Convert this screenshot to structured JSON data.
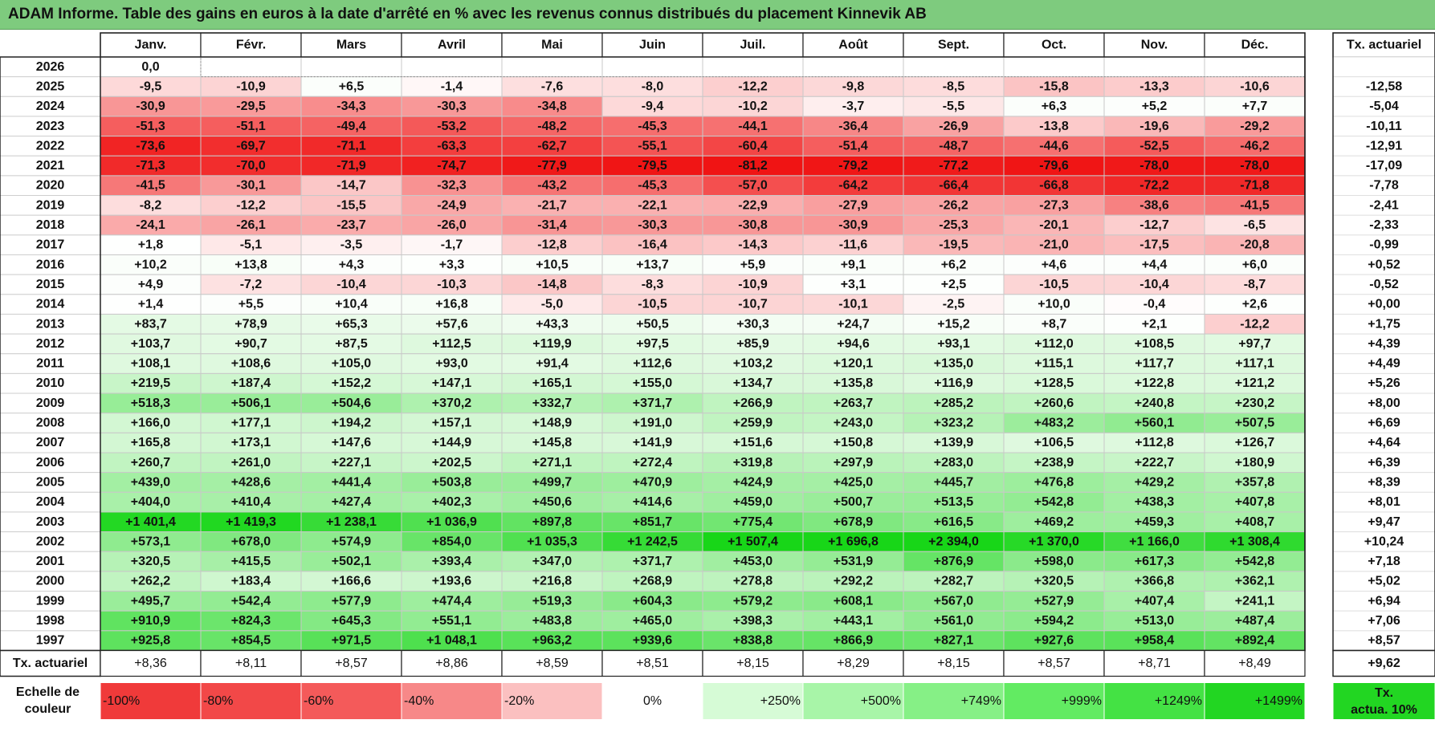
{
  "title": "ADAM Informe. Table des gains en euros à la date d'arrêté en % avec les revenus connus distribués du placement Kinnevik AB",
  "chart_data": {
    "type": "heatmap",
    "months": [
      "Janv.",
      "Févr.",
      "Mars",
      "Avril",
      "Mai",
      "Juin",
      "Juil.",
      "Août",
      "Sept.",
      "Oct.",
      "Nov.",
      "Déc."
    ],
    "rate_header": "Tx. actuariel",
    "rows": [
      {
        "year": "2026",
        "values": [
          "0,0",
          "",
          "",
          "",
          "",
          "",
          "",
          "",
          "",
          "",
          "",
          ""
        ],
        "rate": ""
      },
      {
        "year": "2025",
        "values": [
          "-9,5",
          "-10,9",
          "+6,5",
          "-1,4",
          "-7,6",
          "-8,0",
          "-12,2",
          "-9,8",
          "-8,5",
          "-15,8",
          "-13,3",
          "-10,6"
        ],
        "rate": "-12,58"
      },
      {
        "year": "2024",
        "values": [
          "-30,9",
          "-29,5",
          "-34,3",
          "-30,3",
          "-34,8",
          "-9,4",
          "-10,2",
          "-3,7",
          "-5,5",
          "+6,3",
          "+5,2",
          "+7,7"
        ],
        "rate": "-5,04"
      },
      {
        "year": "2023",
        "values": [
          "-51,3",
          "-51,1",
          "-49,4",
          "-53,2",
          "-48,2",
          "-45,3",
          "-44,1",
          "-36,4",
          "-26,9",
          "-13,8",
          "-19,6",
          "-29,2"
        ],
        "rate": "-10,11"
      },
      {
        "year": "2022",
        "values": [
          "-73,6",
          "-69,7",
          "-71,1",
          "-63,3",
          "-62,7",
          "-55,1",
          "-60,4",
          "-51,4",
          "-48,7",
          "-44,6",
          "-52,5",
          "-46,2"
        ],
        "rate": "-12,91"
      },
      {
        "year": "2021",
        "values": [
          "-71,3",
          "-70,0",
          "-71,9",
          "-74,7",
          "-77,9",
          "-79,5",
          "-81,2",
          "-79,2",
          "-77,2",
          "-79,6",
          "-78,0",
          "-78,0"
        ],
        "rate": "-17,09"
      },
      {
        "year": "2020",
        "values": [
          "-41,5",
          "-30,1",
          "-14,7",
          "-32,3",
          "-43,2",
          "-45,3",
          "-57,0",
          "-64,2",
          "-66,4",
          "-66,8",
          "-72,2",
          "-71,8"
        ],
        "rate": "-7,78"
      },
      {
        "year": "2019",
        "values": [
          "-8,2",
          "-12,2",
          "-15,5",
          "-24,9",
          "-21,7",
          "-22,1",
          "-22,9",
          "-27,9",
          "-26,2",
          "-27,3",
          "-38,6",
          "-41,5"
        ],
        "rate": "-2,41"
      },
      {
        "year": "2018",
        "values": [
          "-24,1",
          "-26,1",
          "-23,7",
          "-26,0",
          "-31,4",
          "-30,3",
          "-30,8",
          "-30,9",
          "-25,3",
          "-20,1",
          "-12,7",
          "-6,5"
        ],
        "rate": "-2,33"
      },
      {
        "year": "2017",
        "values": [
          "+1,8",
          "-5,1",
          "-3,5",
          "-1,7",
          "-12,8",
          "-16,4",
          "-14,3",
          "-11,6",
          "-19,5",
          "-21,0",
          "-17,5",
          "-20,8"
        ],
        "rate": "-0,99"
      },
      {
        "year": "2016",
        "values": [
          "+10,2",
          "+13,8",
          "+4,3",
          "+3,3",
          "+10,5",
          "+13,7",
          "+5,9",
          "+9,1",
          "+6,2",
          "+4,6",
          "+4,4",
          "+6,0"
        ],
        "rate": "+0,52"
      },
      {
        "year": "2015",
        "values": [
          "+4,9",
          "-7,2",
          "-10,4",
          "-10,3",
          "-14,8",
          "-8,3",
          "-10,9",
          "+3,1",
          "+2,5",
          "-10,5",
          "-10,4",
          "-8,7"
        ],
        "rate": "-0,52"
      },
      {
        "year": "2014",
        "values": [
          "+1,4",
          "+5,5",
          "+10,4",
          "+16,8",
          "-5,0",
          "-10,5",
          "-10,7",
          "-10,1",
          "-2,5",
          "+10,0",
          "-0,4",
          "+2,6"
        ],
        "rate": "+0,00"
      },
      {
        "year": "2013",
        "values": [
          "+83,7",
          "+78,9",
          "+65,3",
          "+57,6",
          "+43,3",
          "+50,5",
          "+30,3",
          "+24,7",
          "+15,2",
          "+8,7",
          "+2,1",
          "-12,2"
        ],
        "rate": "+1,75"
      },
      {
        "year": "2012",
        "values": [
          "+103,7",
          "+90,7",
          "+87,5",
          "+112,5",
          "+119,9",
          "+97,5",
          "+85,9",
          "+94,6",
          "+93,1",
          "+112,0",
          "+108,5",
          "+97,7"
        ],
        "rate": "+4,39"
      },
      {
        "year": "2011",
        "values": [
          "+108,1",
          "+108,6",
          "+105,0",
          "+93,0",
          "+91,4",
          "+112,6",
          "+103,2",
          "+120,1",
          "+135,0",
          "+115,1",
          "+117,7",
          "+117,1"
        ],
        "rate": "+4,49"
      },
      {
        "year": "2010",
        "values": [
          "+219,5",
          "+187,4",
          "+152,2",
          "+147,1",
          "+165,1",
          "+155,0",
          "+134,7",
          "+135,8",
          "+116,9",
          "+128,5",
          "+122,8",
          "+121,2"
        ],
        "rate": "+5,26"
      },
      {
        "year": "2009",
        "values": [
          "+518,3",
          "+506,1",
          "+504,6",
          "+370,2",
          "+332,7",
          "+371,7",
          "+266,9",
          "+263,7",
          "+285,2",
          "+260,6",
          "+240,8",
          "+230,2"
        ],
        "rate": "+8,00"
      },
      {
        "year": "2008",
        "values": [
          "+166,0",
          "+177,1",
          "+194,2",
          "+157,1",
          "+148,9",
          "+191,0",
          "+259,9",
          "+243,0",
          "+323,2",
          "+483,2",
          "+560,1",
          "+507,5"
        ],
        "rate": "+6,69"
      },
      {
        "year": "2007",
        "values": [
          "+165,8",
          "+173,1",
          "+147,6",
          "+144,9",
          "+145,8",
          "+141,9",
          "+151,6",
          "+150,8",
          "+139,9",
          "+106,5",
          "+112,8",
          "+126,7"
        ],
        "rate": "+4,64"
      },
      {
        "year": "2006",
        "values": [
          "+260,7",
          "+261,0",
          "+227,1",
          "+202,5",
          "+271,1",
          "+272,4",
          "+319,8",
          "+297,9",
          "+283,0",
          "+238,9",
          "+222,7",
          "+180,9"
        ],
        "rate": "+6,39"
      },
      {
        "year": "2005",
        "values": [
          "+439,0",
          "+428,6",
          "+441,4",
          "+503,8",
          "+499,7",
          "+470,9",
          "+424,9",
          "+425,0",
          "+445,7",
          "+476,8",
          "+429,2",
          "+357,8"
        ],
        "rate": "+8,39"
      },
      {
        "year": "2004",
        "values": [
          "+404,0",
          "+410,4",
          "+427,4",
          "+402,3",
          "+450,6",
          "+414,6",
          "+459,0",
          "+500,7",
          "+513,5",
          "+542,8",
          "+438,3",
          "+407,8"
        ],
        "rate": "+8,01"
      },
      {
        "year": "2003",
        "values": [
          "+1 401,4",
          "+1 419,3",
          "+1 238,1",
          "+1 036,9",
          "+897,8",
          "+851,7",
          "+775,4",
          "+678,9",
          "+616,5",
          "+469,2",
          "+459,3",
          "+408,7"
        ],
        "rate": "+9,47"
      },
      {
        "year": "2002",
        "values": [
          "+573,1",
          "+678,0",
          "+574,9",
          "+854,0",
          "+1 035,3",
          "+1 242,5",
          "+1 507,4",
          "+1 696,8",
          "+2 394,0",
          "+1 370,0",
          "+1 166,0",
          "+1 308,4"
        ],
        "rate": "+10,24"
      },
      {
        "year": "2001",
        "values": [
          "+320,5",
          "+415,5",
          "+502,1",
          "+393,4",
          "+347,0",
          "+371,7",
          "+453,0",
          "+531,9",
          "+876,9",
          "+598,0",
          "+617,3",
          "+542,8"
        ],
        "rate": "+7,18"
      },
      {
        "year": "2000",
        "values": [
          "+262,2",
          "+183,4",
          "+166,6",
          "+193,6",
          "+216,8",
          "+268,9",
          "+278,8",
          "+292,2",
          "+282,7",
          "+320,5",
          "+366,8",
          "+362,1"
        ],
        "rate": "+5,02"
      },
      {
        "year": "1999",
        "values": [
          "+495,7",
          "+542,4",
          "+577,9",
          "+474,4",
          "+519,3",
          "+604,3",
          "+579,2",
          "+608,1",
          "+567,0",
          "+527,9",
          "+407,4",
          "+241,1"
        ],
        "rate": "+6,94"
      },
      {
        "year": "1998",
        "values": [
          "+910,9",
          "+824,3",
          "+645,3",
          "+551,1",
          "+483,8",
          "+465,0",
          "+398,3",
          "+443,1",
          "+561,0",
          "+594,2",
          "+513,0",
          "+487,4"
        ],
        "rate": "+7,06"
      },
      {
        "year": "1997",
        "values": [
          "+925,8",
          "+854,5",
          "+971,5",
          "+1 048,1",
          "+963,2",
          "+939,6",
          "+838,8",
          "+866,9",
          "+827,1",
          "+927,6",
          "+958,4",
          "+892,4"
        ],
        "rate": "+8,57"
      }
    ],
    "summary": {
      "label": "Tx. actuariel",
      "values": [
        "+8,36",
        "+8,11",
        "+8,57",
        "+8,86",
        "+8,59",
        "+8,51",
        "+8,15",
        "+8,29",
        "+8,15",
        "+8,57",
        "+8,71",
        "+8,49"
      ],
      "rate": "+9,62"
    },
    "scale": {
      "label_lines": [
        "Echelle de",
        "couleur"
      ],
      "items": [
        {
          "label": "-100%",
          "color": "#f03a3a",
          "align": "left"
        },
        {
          "label": "-80%",
          "color": "#f24848",
          "align": "left"
        },
        {
          "label": "-60%",
          "color": "#f45a5a",
          "align": "left"
        },
        {
          "label": "-40%",
          "color": "#f78888",
          "align": "left"
        },
        {
          "label": "-20%",
          "color": "#fbc0c0",
          "align": "left"
        },
        {
          "label": "0%",
          "color": "#ffffff",
          "align": "center"
        },
        {
          "label": "+250%",
          "color": "#d6fbd6",
          "align": "right"
        },
        {
          "label": "+500%",
          "color": "#a8f5a8",
          "align": "right"
        },
        {
          "label": "+749%",
          "color": "#86f086",
          "align": "right"
        },
        {
          "label": "+999%",
          "color": "#62eb62",
          "align": "right"
        },
        {
          "label": "+1249%",
          "color": "#44e244",
          "align": "right"
        },
        {
          "label": "+1499%",
          "color": "#22d622",
          "align": "right"
        }
      ],
      "target_lines": [
        "Tx.",
        "actua. 10%"
      ],
      "target_color": "#22d622"
    }
  }
}
